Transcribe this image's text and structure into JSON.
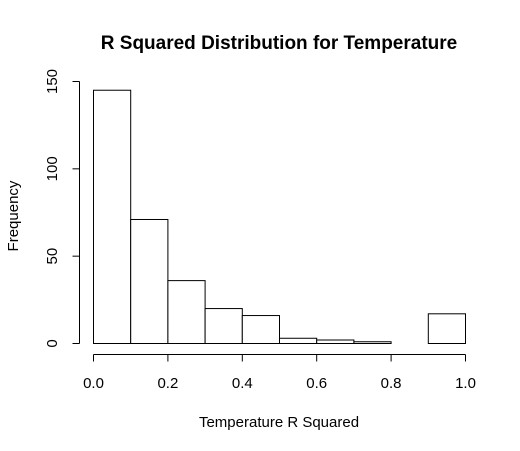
{
  "chart_data": {
    "type": "bar",
    "title": "R Squared Distribution for Temperature",
    "xlabel": "Temperature R Squared",
    "ylabel": "Frequency",
    "bins": [
      {
        "x0": 0.0,
        "x1": 0.1,
        "count": 145
      },
      {
        "x0": 0.1,
        "x1": 0.2,
        "count": 71
      },
      {
        "x0": 0.2,
        "x1": 0.3,
        "count": 36
      },
      {
        "x0": 0.3,
        "x1": 0.4,
        "count": 20
      },
      {
        "x0": 0.4,
        "x1": 0.5,
        "count": 16
      },
      {
        "x0": 0.5,
        "x1": 0.6,
        "count": 3
      },
      {
        "x0": 0.6,
        "x1": 0.7,
        "count": 2
      },
      {
        "x0": 0.7,
        "x1": 0.8,
        "count": 1
      },
      {
        "x0": 0.8,
        "x1": 0.9,
        "count": 0
      },
      {
        "x0": 0.9,
        "x1": 1.0,
        "count": 17
      }
    ],
    "xlim": [
      0,
      1
    ],
    "ylim": [
      0,
      150
    ],
    "x_ticks": [
      0.0,
      0.2,
      0.4,
      0.6,
      0.8,
      1.0
    ],
    "x_tick_labels": [
      "0.0",
      "0.2",
      "0.4",
      "0.6",
      "0.8",
      "1.0"
    ],
    "y_ticks": [
      0,
      50,
      100,
      150
    ],
    "y_tick_labels": [
      "0",
      "50",
      "100",
      "150"
    ],
    "grid": false,
    "bar_fill": "#ffffff",
    "bar_stroke": "#000000"
  }
}
